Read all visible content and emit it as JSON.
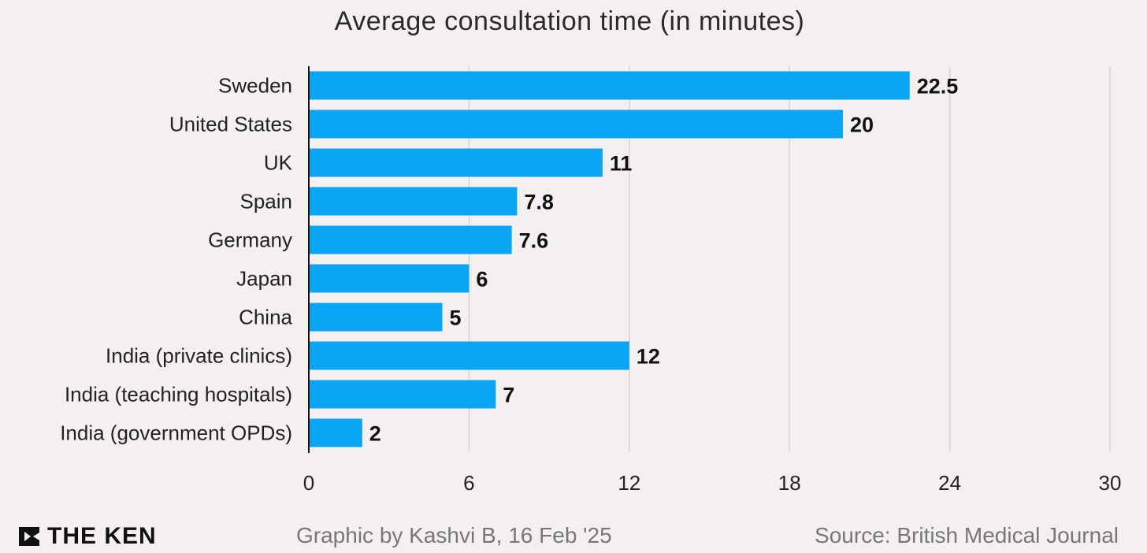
{
  "brand": {
    "name": "THE KEN"
  },
  "footer": {
    "credit": "Graphic by Kashvi B, 16 Feb '25",
    "source": "Source: British Medical Journal"
  },
  "colors": {
    "bar": "#0aa5f5",
    "background": "#f5f0f0",
    "grid": "#d8d4d4"
  },
  "chart_data": {
    "type": "bar",
    "orientation": "horizontal",
    "title": "Average consultation time (in minutes)",
    "categories": [
      "Sweden",
      "United States",
      "UK",
      "Spain",
      "Germany",
      "Japan",
      "China",
      "India (private clinics)",
      "India (teaching hospitals)",
      "India (government OPDs)"
    ],
    "values": [
      22.5,
      20,
      11,
      7.8,
      7.6,
      6,
      5,
      12,
      7,
      2
    ],
    "value_labels": [
      "22.5",
      "20",
      "11",
      "7.8",
      "7.6",
      "6",
      "5",
      "12",
      "7",
      "2"
    ],
    "xlim": [
      0,
      30
    ],
    "xticks": [
      0,
      6,
      12,
      18,
      24,
      30
    ],
    "grid": true,
    "legend": false
  }
}
